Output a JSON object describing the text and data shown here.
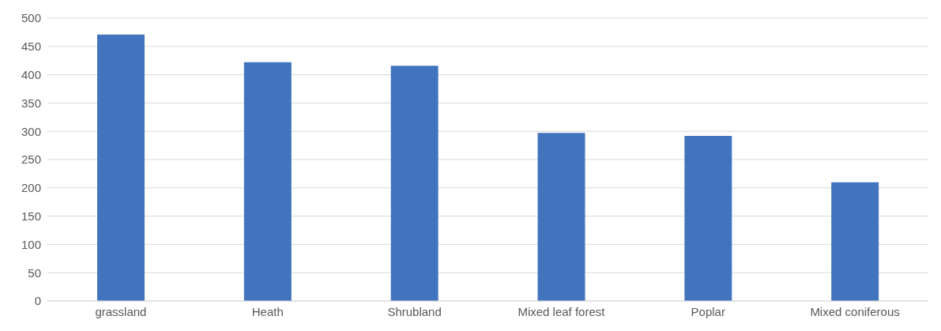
{
  "chart_data": {
    "type": "bar",
    "categories": [
      "grassland",
      "Heath",
      "Shrubland",
      "Mixed leaf forest",
      "Poplar",
      "Mixed coniferous"
    ],
    "values": [
      471,
      422,
      416,
      297,
      292,
      210
    ],
    "color": "#4274be",
    "ylim": [
      0,
      500
    ],
    "yticks": [
      0,
      50,
      100,
      150,
      200,
      250,
      300,
      350,
      400,
      450,
      500
    ],
    "grid": "y"
  }
}
